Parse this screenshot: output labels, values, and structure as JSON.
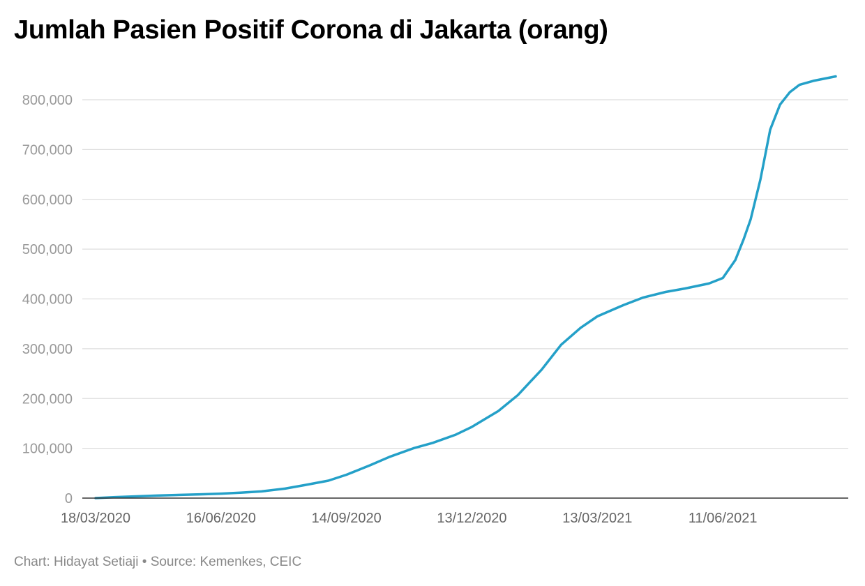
{
  "title": "Jumlah Pasien Positif Corona di Jakarta (orang)",
  "footer": {
    "credit": "Chart: Hidayat Setiaji",
    "separator": "•",
    "source": "Source: Kemenkes, CEIC"
  },
  "colors": {
    "line": "#24a0c8",
    "grid": "#dddddd",
    "axis": "#333333",
    "ytick": "#999999",
    "xtick": "#666666",
    "title": "#000000",
    "footer": "#888888"
  },
  "chart_data": {
    "type": "line",
    "title": "Jumlah Pasien Positif Corona di Jakarta (orang)",
    "xlabel": "",
    "ylabel": "",
    "ylim": [
      0,
      850000
    ],
    "xlim": [
      "2020-03-18",
      "2021-08-31"
    ],
    "grid": true,
    "legend": "none",
    "yticks": [
      0,
      100000,
      200000,
      300000,
      400000,
      500000,
      600000,
      700000,
      800000
    ],
    "ytick_labels": [
      "0",
      "100,000",
      "200,000",
      "300,000",
      "400,000",
      "500,000",
      "600,000",
      "700,000",
      "800,000"
    ],
    "xticks": [
      "2020-03-18",
      "2020-06-16",
      "2020-09-14",
      "2020-12-13",
      "2021-03-13",
      "2021-06-11"
    ],
    "xtick_labels": [
      "18/03/2020",
      "16/06/2020",
      "14/09/2020",
      "13/12/2020",
      "13/03/2021",
      "11/06/2021"
    ],
    "series": [
      {
        "x": [
          "2020-03-18",
          "2020-04-01",
          "2020-05-01",
          "2020-06-01",
          "2020-06-16",
          "2020-07-01",
          "2020-07-15",
          "2020-08-01",
          "2020-08-15",
          "2020-09-01",
          "2020-09-14",
          "2020-10-01",
          "2020-10-15",
          "2020-11-01",
          "2020-11-15",
          "2020-12-01",
          "2020-12-13",
          "2021-01-01",
          "2021-01-15",
          "2021-02-01",
          "2021-02-15",
          "2021-03-01",
          "2021-03-13",
          "2021-04-01",
          "2021-04-15",
          "2021-05-01",
          "2021-05-15",
          "2021-06-01",
          "2021-06-11",
          "2021-06-20",
          "2021-06-26",
          "2021-07-01",
          "2021-07-08",
          "2021-07-15",
          "2021-07-22",
          "2021-07-29",
          "2021-08-05",
          "2021-08-15",
          "2021-08-31"
        ],
        "values": [
          0,
          2000,
          5000,
          7500,
          9000,
          11000,
          13500,
          19000,
          26000,
          35000,
          47000,
          66000,
          83000,
          100000,
          111000,
          127000,
          143000,
          175000,
          207000,
          258000,
          308000,
          342000,
          365000,
          388000,
          403000,
          414000,
          421000,
          431000,
          442000,
          478000,
          520000,
          560000,
          640000,
          740000,
          790000,
          815000,
          830000,
          838000,
          847000
        ]
      }
    ]
  }
}
